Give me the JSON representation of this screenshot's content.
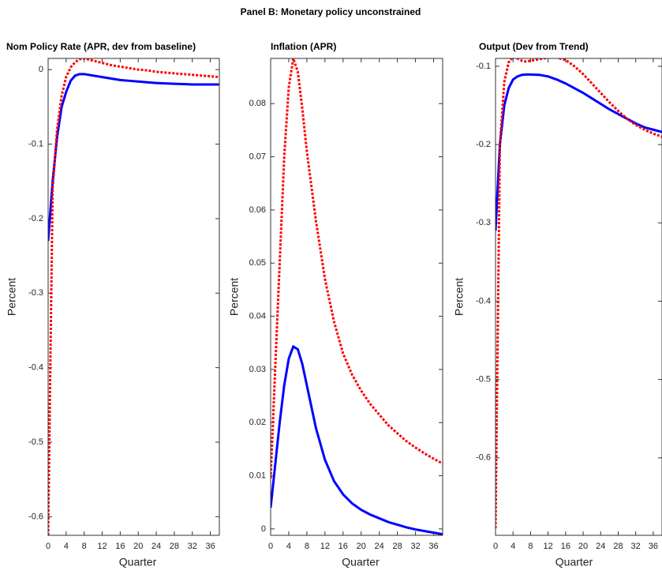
{
  "figure_title": "Panel B: Monetary policy unconstrained",
  "chart_data": [
    {
      "type": "line",
      "title": "Nom Policy Rate (APR, dev from baseline)",
      "xlabel": "Quarter",
      "ylabel": "Percent",
      "x": [
        0,
        1,
        2,
        3,
        4,
        5,
        6,
        7,
        8,
        10,
        12,
        14,
        16,
        18,
        20,
        22,
        24,
        26,
        28,
        30,
        32,
        34,
        36,
        38
      ],
      "xlim": [
        0,
        38
      ],
      "xticks": [
        0,
        4,
        8,
        12,
        16,
        20,
        24,
        28,
        32,
        36
      ],
      "ylim": [
        -0.625,
        0.015
      ],
      "yticks": [
        -0.6,
        -0.5,
        -0.4,
        -0.3,
        -0.2,
        -0.1,
        0
      ],
      "series": [
        {
          "color": "#0000ff",
          "style": "solid",
          "values": [
            -0.23,
            -0.15,
            -0.09,
            -0.05,
            -0.03,
            -0.015,
            -0.008,
            -0.006,
            -0.006,
            -0.008,
            -0.01,
            -0.012,
            -0.014,
            -0.015,
            -0.016,
            -0.017,
            -0.018,
            -0.0185,
            -0.019,
            -0.0195,
            -0.02,
            -0.02,
            -0.02,
            -0.02
          ]
        },
        {
          "color": "#ff0000",
          "style": "dotted",
          "values": [
            -0.625,
            -0.16,
            -0.08,
            -0.035,
            -0.01,
            0.003,
            0.01,
            0.014,
            0.015,
            0.012,
            0.009,
            0.006,
            0.004,
            0.002,
            0.0,
            -0.001,
            -0.003,
            -0.004,
            -0.005,
            -0.006,
            -0.007,
            -0.008,
            -0.009,
            -0.01
          ]
        }
      ]
    },
    {
      "type": "line",
      "title": "Inflation (APR)",
      "xlabel": "Quarter",
      "ylabel": "Percent",
      "x": [
        0,
        1,
        2,
        3,
        4,
        5,
        6,
        7,
        8,
        10,
        12,
        14,
        16,
        18,
        20,
        22,
        24,
        26,
        28,
        30,
        32,
        34,
        36,
        38
      ],
      "xlim": [
        0,
        38
      ],
      "xticks": [
        0,
        4,
        8,
        12,
        16,
        20,
        24,
        28,
        32,
        36
      ],
      "ylim": [
        -0.0012,
        0.0885
      ],
      "yticks": [
        0,
        0.01,
        0.02,
        0.03,
        0.04,
        0.05,
        0.06,
        0.07,
        0.08
      ],
      "series": [
        {
          "color": "#0000ff",
          "style": "solid",
          "values": [
            0.004,
            0.012,
            0.02,
            0.027,
            0.032,
            0.0343,
            0.0338,
            0.031,
            0.027,
            0.019,
            0.013,
            0.009,
            0.0065,
            0.0048,
            0.0036,
            0.0027,
            0.002,
            0.0013,
            0.0008,
            0.0003,
            -0.0001,
            -0.0004,
            -0.0007,
            -0.001
          ]
        },
        {
          "color": "#ff0000",
          "style": "dotted",
          "values": [
            0.0095,
            0.03,
            0.05,
            0.07,
            0.083,
            0.0885,
            0.086,
            0.079,
            0.071,
            0.058,
            0.047,
            0.039,
            0.033,
            0.029,
            0.026,
            0.0235,
            0.0215,
            0.0195,
            0.018,
            0.0165,
            0.0153,
            0.0142,
            0.0132,
            0.0123
          ]
        }
      ]
    },
    {
      "type": "line",
      "title": "Output (Dev from Trend)",
      "xlabel": "Quarter",
      "ylabel": "Percent",
      "x": [
        0,
        1,
        2,
        3,
        4,
        5,
        6,
        7,
        8,
        10,
        12,
        14,
        16,
        18,
        20,
        22,
        24,
        26,
        28,
        30,
        32,
        34,
        36,
        38
      ],
      "xlim": [
        0,
        38
      ],
      "xticks": [
        0,
        4,
        8,
        12,
        16,
        20,
        24,
        28,
        32,
        36
      ],
      "ylim": [
        -0.699,
        -0.09
      ],
      "yticks": [
        -0.6,
        -0.5,
        -0.4,
        -0.3,
        -0.2,
        -0.1
      ],
      "series": [
        {
          "color": "#0000ff",
          "style": "solid",
          "values": [
            -0.31,
            -0.2,
            -0.15,
            -0.128,
            -0.117,
            -0.113,
            -0.111,
            -0.1105,
            -0.1105,
            -0.111,
            -0.113,
            -0.117,
            -0.122,
            -0.128,
            -0.134,
            -0.141,
            -0.148,
            -0.155,
            -0.161,
            -0.167,
            -0.173,
            -0.178,
            -0.181,
            -0.184
          ]
        },
        {
          "color": "#ff0000",
          "style": "dotted",
          "values": [
            -0.69,
            -0.2,
            -0.12,
            -0.095,
            -0.088,
            -0.09,
            -0.093,
            -0.094,
            -0.093,
            -0.091,
            -0.089,
            -0.089,
            -0.092,
            -0.1,
            -0.11,
            -0.122,
            -0.134,
            -0.146,
            -0.157,
            -0.167,
            -0.175,
            -0.181,
            -0.186,
            -0.19
          ]
        }
      ]
    }
  ]
}
